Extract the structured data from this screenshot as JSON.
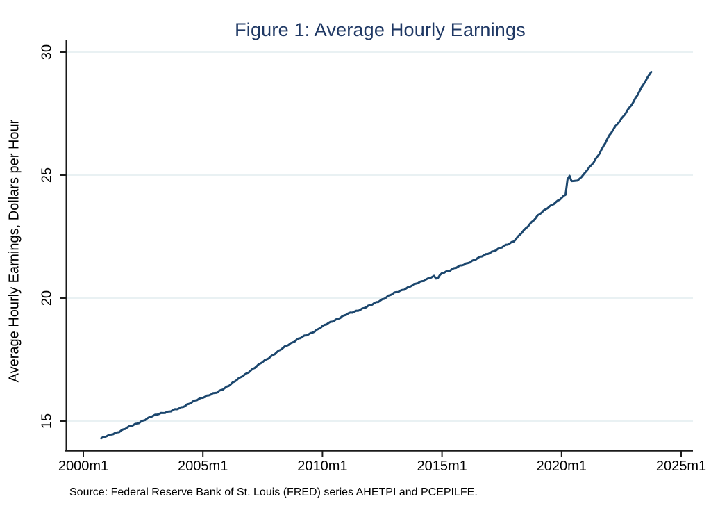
{
  "figure": {
    "title": "Figure 1: Average Hourly Earnings",
    "title_color": "#1f3864",
    "y_axis_title": "Average Hourly Earnings, Dollars per Hour",
    "source_note": "Source: Federal Reserve Bank of St. Louis (FRED) series AHETPI and PCEPILFE."
  },
  "chart_data": {
    "type": "line",
    "title": "Figure 1: Average Hourly Earnings",
    "xlabel": "",
    "ylabel": "Average Hourly Earnings, Dollars per Hour",
    "x_unit": "month (Stata %tm format)",
    "y_unit": "Dollars per Hour",
    "xlim": [
      1999.2,
      2025.5
    ],
    "ylim": [
      13.8,
      30.5
    ],
    "grid": "horizontal-only",
    "grid_color": "#e9f1f3",
    "axis_color": "#1a1a1a",
    "background": "#ffffff",
    "legend": "none",
    "x_ticks": [
      {
        "label": "2000m1",
        "value": 2000
      },
      {
        "label": "2005m1",
        "value": 2005
      },
      {
        "label": "2010m1",
        "value": 2010
      },
      {
        "label": "2015m1",
        "value": 2015
      },
      {
        "label": "2020m1",
        "value": 2020
      },
      {
        "label": "2025m1",
        "value": 2025
      }
    ],
    "y_ticks": [
      {
        "label": "15",
        "value": 15
      },
      {
        "label": "20",
        "value": 20
      },
      {
        "label": "25",
        "value": 25
      },
      {
        "label": "30",
        "value": 30
      }
    ],
    "series": [
      {
        "name": "Average Hourly Earnings (AHETPI)",
        "color": "#1c476e",
        "line_width": 3,
        "frequency": "monthly (anchor points read from plot; monthly values interpolated)",
        "points": [
          [
            2000.75,
            14.3
          ],
          [
            2001.08,
            14.42
          ],
          [
            2001.5,
            14.58
          ],
          [
            2002.0,
            14.8
          ],
          [
            2002.5,
            15.02
          ],
          [
            2002.9,
            15.2
          ],
          [
            2003.2,
            15.32
          ],
          [
            2003.6,
            15.38
          ],
          [
            2004.0,
            15.52
          ],
          [
            2004.5,
            15.74
          ],
          [
            2005.0,
            15.97
          ],
          [
            2005.3,
            16.08
          ],
          [
            2005.6,
            16.16
          ],
          [
            2006.0,
            16.4
          ],
          [
            2006.5,
            16.72
          ],
          [
            2007.0,
            17.06
          ],
          [
            2007.5,
            17.4
          ],
          [
            2008.0,
            17.74
          ],
          [
            2008.5,
            18.06
          ],
          [
            2009.0,
            18.35
          ],
          [
            2009.5,
            18.56
          ],
          [
            2010.0,
            18.85
          ],
          [
            2010.5,
            19.1
          ],
          [
            2011.0,
            19.33
          ],
          [
            2011.5,
            19.51
          ],
          [
            2012.0,
            19.7
          ],
          [
            2012.5,
            19.95
          ],
          [
            2013.0,
            20.2
          ],
          [
            2013.5,
            20.4
          ],
          [
            2014.0,
            20.62
          ],
          [
            2014.42,
            20.8
          ],
          [
            2014.67,
            20.88
          ],
          [
            2014.78,
            20.76
          ],
          [
            2015.0,
            21.02
          ],
          [
            2015.5,
            21.2
          ],
          [
            2016.0,
            21.4
          ],
          [
            2016.5,
            21.62
          ],
          [
            2017.0,
            21.85
          ],
          [
            2017.5,
            22.06
          ],
          [
            2018.0,
            22.32
          ],
          [
            2018.5,
            22.82
          ],
          [
            2019.0,
            23.36
          ],
          [
            2019.5,
            23.72
          ],
          [
            2019.92,
            24.02
          ],
          [
            2020.17,
            24.2
          ],
          [
            2020.29,
            25.15
          ],
          [
            2020.37,
            24.82
          ],
          [
            2020.46,
            24.7
          ],
          [
            2020.54,
            24.82
          ],
          [
            2020.62,
            24.73
          ],
          [
            2020.71,
            24.82
          ],
          [
            2020.83,
            24.92
          ],
          [
            2020.96,
            25.08
          ],
          [
            2021.12,
            25.25
          ],
          [
            2021.33,
            25.5
          ],
          [
            2021.62,
            25.95
          ],
          [
            2021.92,
            26.48
          ],
          [
            2022.21,
            26.92
          ],
          [
            2022.58,
            27.4
          ],
          [
            2023.0,
            27.95
          ],
          [
            2023.42,
            28.7
          ],
          [
            2023.75,
            29.21
          ]
        ]
      }
    ],
    "annotations": {
      "covid_spike": {
        "x": 2020.29,
        "y": 25.15,
        "note": "sharp spike then dip visible in plotted line"
      }
    }
  }
}
